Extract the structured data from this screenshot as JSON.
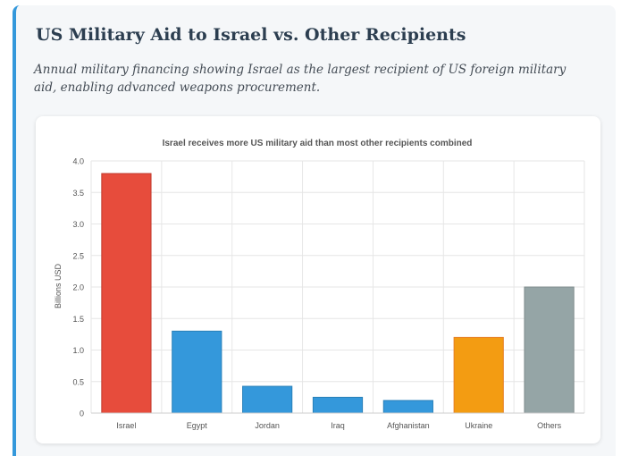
{
  "page": {
    "title": "US Military Aid to Israel vs. Other Recipients",
    "subtitle": "Annual military financing showing Israel as the largest recipient of US foreign military aid, enabling advanced weapons procurement."
  },
  "colors": {
    "accent": "#3498db",
    "title": "#2c3e50"
  },
  "chart_data": {
    "type": "bar",
    "title": "Israel receives more US military aid than most other recipients combined",
    "xlabel": "",
    "ylabel": "Billions USD",
    "ylim": [
      0,
      4.0
    ],
    "yticks": [
      0,
      0.5,
      1.0,
      1.5,
      2.0,
      2.5,
      3.0,
      3.5,
      4.0
    ],
    "ytick_labels": [
      "0",
      "0.5",
      "1.0",
      "1.5",
      "2.0",
      "2.5",
      "3.0",
      "3.5",
      "4.0"
    ],
    "grid": true,
    "legend": "none",
    "categories": [
      "Israel",
      "Egypt",
      "Jordan",
      "Iraq",
      "Afghanistan",
      "Ukraine",
      "Others"
    ],
    "values": [
      3.8,
      1.3,
      0.425,
      0.25,
      0.2,
      1.2,
      2.0
    ],
    "bar_colors": [
      "#e74c3c",
      "#3498db",
      "#3498db",
      "#3498db",
      "#3498db",
      "#f39c12",
      "#95a5a6"
    ],
    "bar_border_colors": [
      "#c0392b",
      "#2980b9",
      "#2980b9",
      "#2980b9",
      "#2980b9",
      "#e67e22",
      "#7f8c8d"
    ]
  }
}
